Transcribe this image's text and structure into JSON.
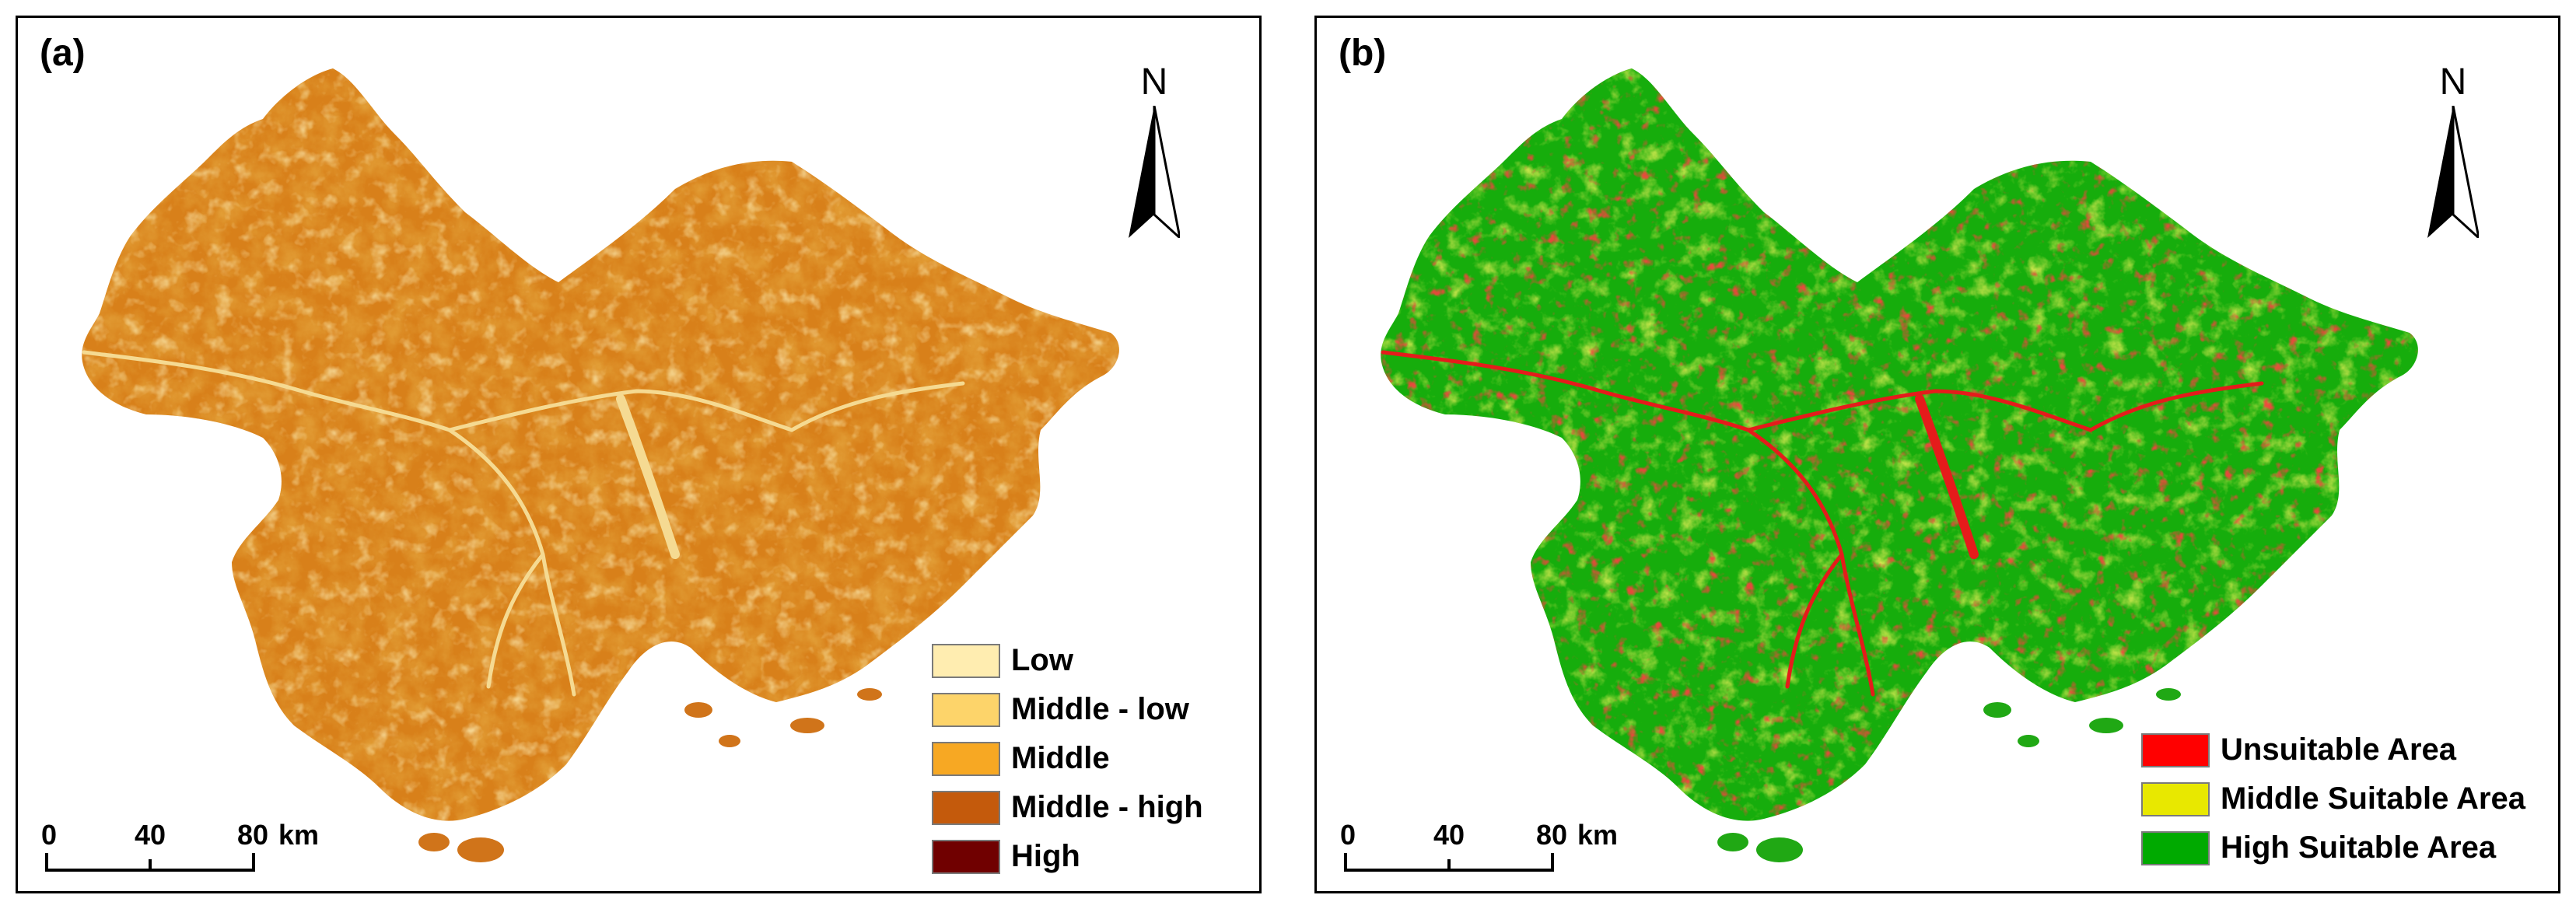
{
  "panels": [
    {
      "label": "(a)",
      "north": "N",
      "legend": [
        {
          "label": "Low",
          "color": "#FFEDB0"
        },
        {
          "label": "Middle - low",
          "color": "#FDD46A"
        },
        {
          "label": "Middle",
          "color": "#F7A823"
        },
        {
          "label": "Middle - high",
          "color": "#C45A0C"
        },
        {
          "label": "High",
          "color": "#700000"
        }
      ],
      "scale": {
        "ticks": [
          "0",
          "40",
          "80"
        ],
        "unit": "km"
      },
      "map_colors": {
        "base": "#D8801A",
        "dark": "#8B2D06",
        "light": "#F6C766",
        "river": "#F4D88A"
      }
    },
    {
      "label": "(b)",
      "north": "N",
      "legend": [
        {
          "label": "Unsuitable Area",
          "color": "#FF0000"
        },
        {
          "label": "Middle Suitable Area",
          "color": "#E8E800"
        },
        {
          "label": "High Suitable Area",
          "color": "#00AA00"
        }
      ],
      "scale": {
        "ticks": [
          "0",
          "40",
          "80"
        ],
        "unit": "km"
      },
      "map_colors": {
        "base": "#16AD0C",
        "dark": "#0E9A0A",
        "light": "#D9DE14",
        "river": "#E51B1B"
      }
    }
  ]
}
